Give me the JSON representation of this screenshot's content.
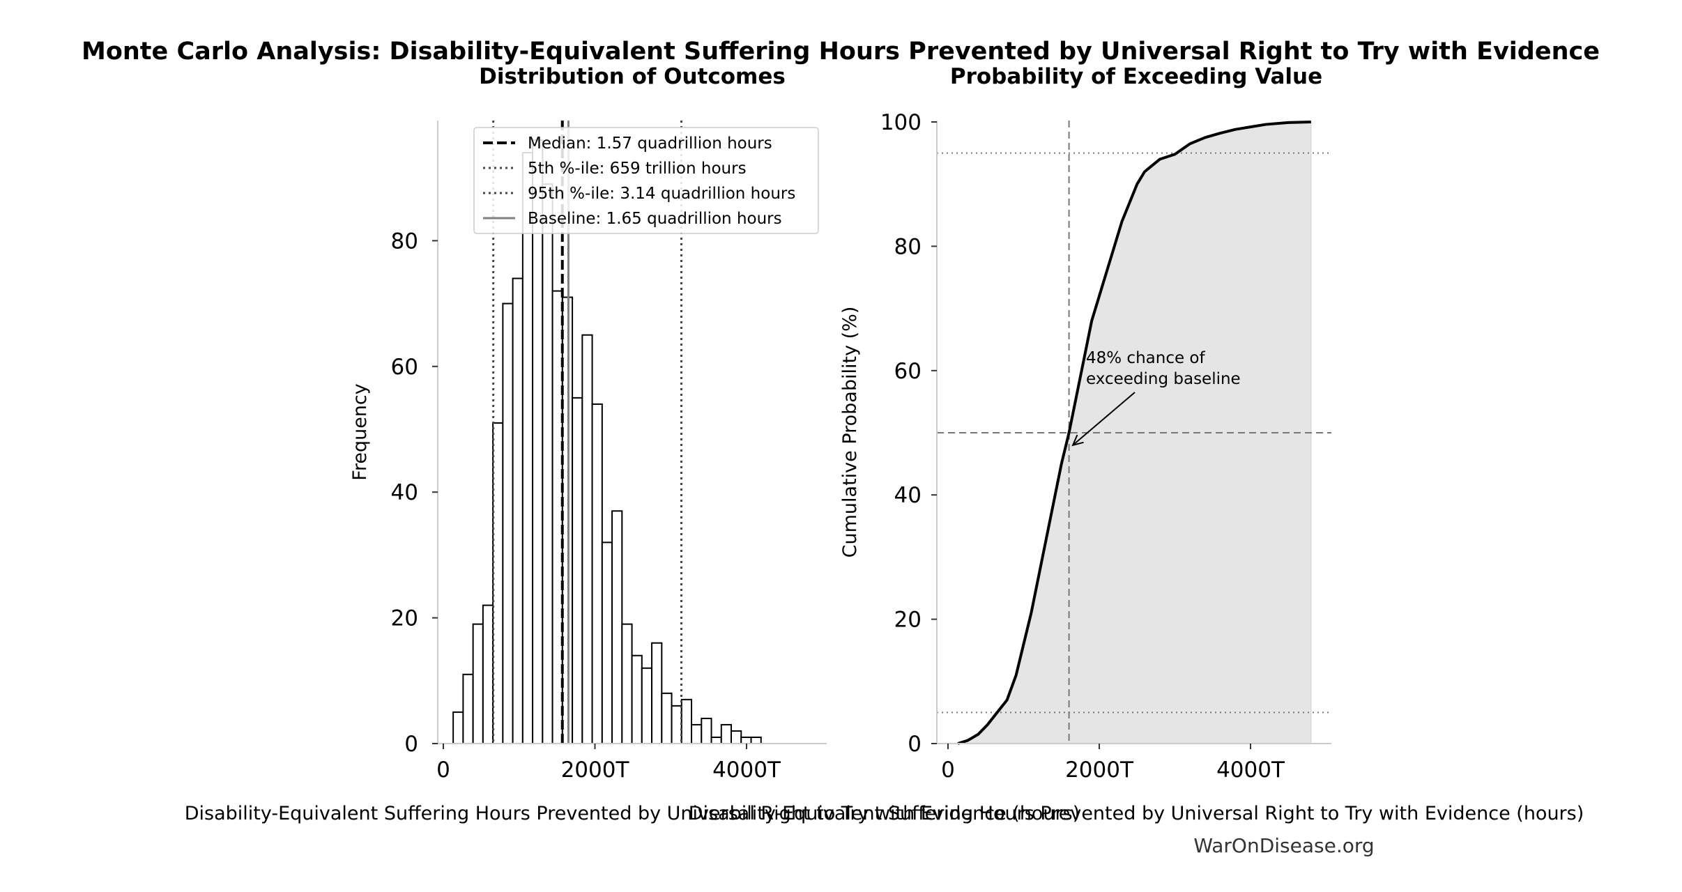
{
  "suptitle": "Monte Carlo Analysis: Disability-Equivalent Suffering Hours Prevented by Universal Right to Try with Evidence",
  "credit": "WarOnDisease.org",
  "colors": {
    "bar_fill": "#ffffff",
    "bar_edge": "#000000",
    "ref_line": "#444444",
    "baseline": "#808080",
    "cdf_fill": "#e5e5e5",
    "cdf_line": "#000000"
  },
  "chart_data": [
    {
      "type": "bar",
      "subtitle": "Distribution of Outcomes",
      "xlabel": "Disability-Equivalent Suffering Hours Prevented by Universal Right to Try with Evidence (hours)",
      "ylabel": "Frequency",
      "xlim": [
        -100,
        5000
      ],
      "ylim": [
        0,
        99
      ],
      "xticks": [
        0,
        2000,
        4000
      ],
      "xtick_labels": [
        "0",
        "2000T",
        "4000T"
      ],
      "yticks": [
        0,
        20,
        40,
        60,
        80
      ],
      "ytick_labels": [
        "0",
        "20",
        "40",
        "60",
        "80"
      ],
      "bin_start": 130,
      "bin_width": 131,
      "values": [
        5,
        11,
        19,
        22,
        51,
        70,
        74,
        94,
        96,
        89,
        72,
        71,
        55,
        65,
        54,
        32,
        37,
        19,
        14,
        12,
        16,
        8,
        6,
        7,
        3,
        4,
        1,
        3,
        2,
        1,
        1
      ],
      "ref_lines": [
        {
          "name": "median",
          "value": 1570,
          "style": "dashed"
        },
        {
          "name": "p5",
          "value": 659,
          "style": "dotted"
        },
        {
          "name": "p95",
          "value": 3140,
          "style": "dotted"
        },
        {
          "name": "baseline",
          "value": 1650,
          "style": "solid"
        }
      ],
      "legend_position": "top-right",
      "legend": [
        {
          "label": "Median: 1.57 quadrillion hours",
          "style": "dashed"
        },
        {
          "label": "5th %-ile: 659 trillion hours",
          "style": "dotted"
        },
        {
          "label": "95th %-ile: 3.14 quadrillion hours",
          "style": "dotted"
        },
        {
          "label": "Baseline: 1.65 quadrillion hours",
          "style": "solid"
        }
      ],
      "grid": false
    },
    {
      "type": "area",
      "subtitle": "Probability of Exceeding Value",
      "xlabel": "Disability-Equivalent Suffering Hours Prevented by Universal Right to Try with Evidence (hours)",
      "ylabel": "Cumulative Probability (%)",
      "xlim": [
        -100,
        5000
      ],
      "ylim": [
        0,
        100
      ],
      "xticks": [
        0,
        2000,
        4000
      ],
      "xtick_labels": [
        "0",
        "2000T",
        "4000T"
      ],
      "yticks": [
        0,
        20,
        40,
        60,
        80,
        100
      ],
      "ytick_labels": [
        "0",
        "20",
        "40",
        "60",
        "80",
        "100"
      ],
      "x": [
        130,
        260,
        400,
        520,
        650,
        780,
        900,
        1000,
        1100,
        1200,
        1300,
        1400,
        1500,
        1600,
        1700,
        1800,
        1900,
        2000,
        2100,
        2200,
        2300,
        2400,
        2500,
        2600,
        2700,
        2800,
        3000,
        3200,
        3400,
        3600,
        3800,
        4000,
        4200,
        4500,
        4800
      ],
      "y": [
        0,
        0.5,
        1.5,
        3,
        5,
        7,
        11,
        16,
        21,
        27,
        33,
        39,
        45,
        50,
        56,
        62,
        68,
        72,
        76,
        80,
        84,
        87,
        90,
        92,
        93,
        94,
        94.8,
        96.5,
        97.5,
        98.2,
        98.8,
        99.2,
        99.6,
        99.9,
        100
      ],
      "hlines": [
        5,
        50,
        95
      ],
      "vline": 1600,
      "annotation": {
        "text_line1": "48% chance of",
        "text_line2": "exceeding baseline",
        "point": [
          1650,
          48
        ],
        "text_at": [
          1850,
          61
        ]
      },
      "grid": false
    }
  ]
}
